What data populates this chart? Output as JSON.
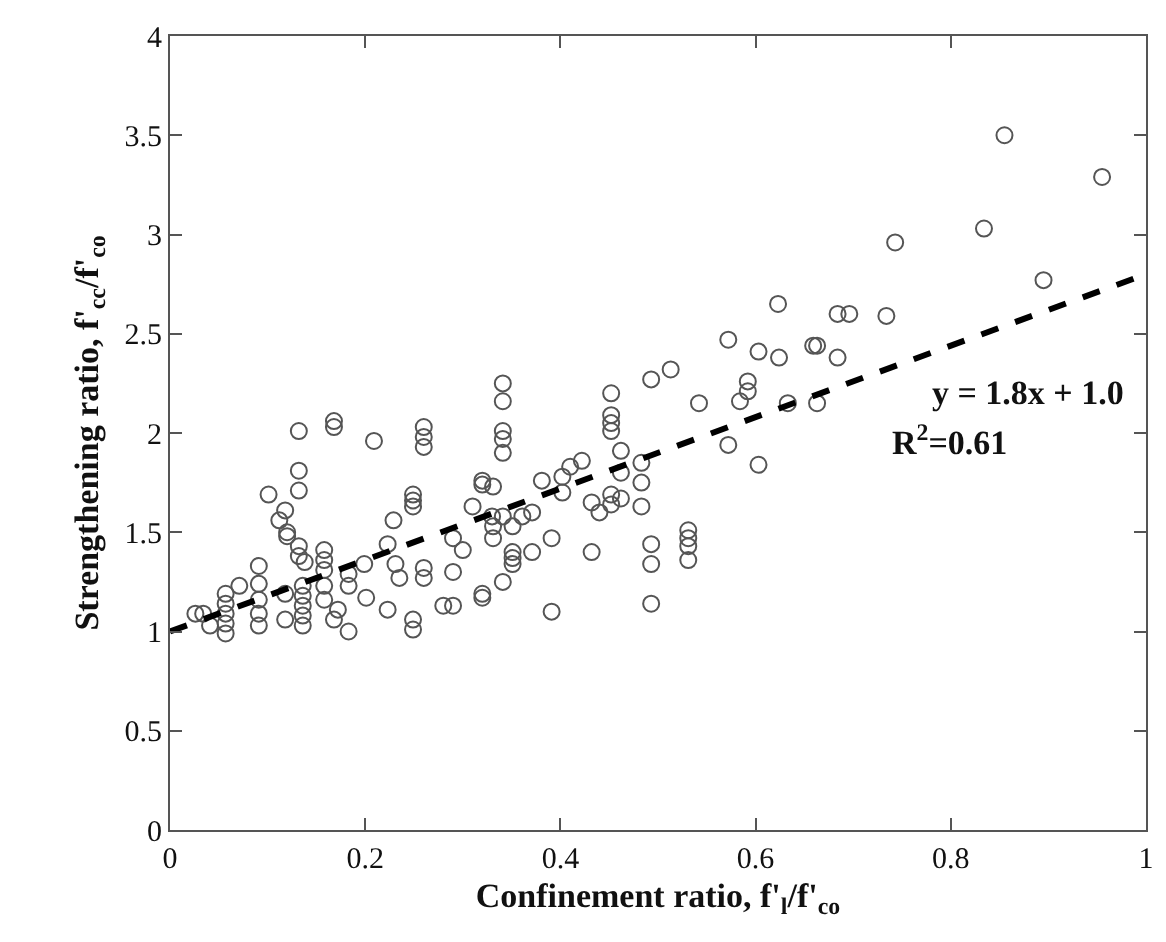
{
  "chart_data": {
    "type": "scatter",
    "xlabel": "Confinement ratio, f'$_{l}$/f'$_{co}$",
    "ylabel": "Strengthening ratio, f'$_{cc}$/f'$_{co}$",
    "xlim": [
      0,
      1
    ],
    "xticks": [
      0,
      0.2,
      0.4,
      0.6,
      0.8,
      1
    ],
    "ylim": [
      0,
      4
    ],
    "yticks": [
      0,
      0.5,
      1,
      1.5,
      2,
      2.5,
      3,
      3.5,
      4
    ],
    "annotations": [
      "y = 1.8x + 1.0",
      "R$^{2}$=0.61"
    ],
    "series": [
      {
        "color": "#555555",
        "marker": "circle",
        "x": [
          0.026,
          0.034,
          0.041,
          0.057,
          0.057,
          0.057,
          0.057,
          0.057,
          0.071,
          0.091,
          0.091,
          0.091,
          0.091,
          0.091,
          0.101,
          0.112,
          0.118,
          0.118,
          0.118,
          0.12,
          0.12,
          0.132,
          0.132,
          0.132,
          0.132,
          0.132,
          0.138,
          0.136,
          0.136,
          0.136,
          0.136,
          0.136,
          0.158,
          0.158,
          0.158,
          0.158,
          0.158,
          0.168,
          0.168,
          0.168,
          0.183,
          0.183,
          0.183,
          0.172,
          0.199,
          0.201,
          0.209,
          0.223,
          0.223,
          0.229,
          0.231,
          0.235,
          0.249,
          0.249,
          0.249,
          0.249,
          0.249,
          0.26,
          0.26,
          0.26,
          0.26,
          0.26,
          0.28,
          0.29,
          0.29,
          0.29,
          0.3,
          0.31,
          0.32,
          0.32,
          0.33,
          0.32,
          0.331,
          0.341,
          0.341,
          0.341,
          0.341,
          0.341,
          0.341,
          0.351,
          0.361,
          0.331,
          0.331,
          0.351,
          0.351,
          0.351,
          0.371,
          0.341,
          0.32,
          0.381,
          0.402,
          0.41,
          0.422,
          0.402,
          0.371,
          0.391,
          0.432,
          0.432,
          0.44,
          0.391,
          0.452,
          0.452,
          0.452,
          0.452,
          0.462,
          0.483,
          0.462,
          0.483,
          0.452,
          0.452,
          0.462,
          0.483,
          0.493,
          0.493,
          0.493,
          0.493,
          0.513,
          0.531,
          0.531,
          0.531,
          0.531,
          0.542,
          0.572,
          0.572,
          0.584,
          0.592,
          0.592,
          0.603,
          0.603,
          0.623,
          0.624,
          0.633,
          0.659,
          0.663,
          0.663,
          0.684,
          0.684,
          0.696,
          0.734,
          0.743,
          0.834,
          0.855,
          0.895,
          0.955
        ],
        "values": [
          1.09,
          1.09,
          1.03,
          1.19,
          1.14,
          1.09,
          1.04,
          0.99,
          1.23,
          1.33,
          1.24,
          1.16,
          1.09,
          1.03,
          1.69,
          1.56,
          1.61,
          1.19,
          1.06,
          1.48,
          1.5,
          2.01,
          1.81,
          1.71,
          1.43,
          1.38,
          1.35,
          1.23,
          1.18,
          1.13,
          1.08,
          1.03,
          1.41,
          1.36,
          1.31,
          1.23,
          1.16,
          2.06,
          2.03,
          1.06,
          1.29,
          1.23,
          1.0,
          1.11,
          1.34,
          1.17,
          1.96,
          1.44,
          1.11,
          1.56,
          1.34,
          1.27,
          1.69,
          1.66,
          1.63,
          1.06,
          1.01,
          2.03,
          1.98,
          1.93,
          1.32,
          1.27,
          1.13,
          1.13,
          1.47,
          1.3,
          1.41,
          1.63,
          1.74,
          1.19,
          1.58,
          1.76,
          1.73,
          2.25,
          2.16,
          2.01,
          1.97,
          1.9,
          1.58,
          1.53,
          1.58,
          1.53,
          1.47,
          1.4,
          1.37,
          1.34,
          1.4,
          1.25,
          1.17,
          1.76,
          1.7,
          1.83,
          1.86,
          1.78,
          1.6,
          1.47,
          1.65,
          1.4,
          1.6,
          1.1,
          2.2,
          2.09,
          2.05,
          2.01,
          1.91,
          1.85,
          1.8,
          1.75,
          1.69,
          1.64,
          1.67,
          1.63,
          1.44,
          1.34,
          1.14,
          2.27,
          2.32,
          1.51,
          1.47,
          1.43,
          1.36,
          2.15,
          2.47,
          1.94,
          2.16,
          2.26,
          2.21,
          2.41,
          1.84,
          2.65,
          2.38,
          2.15,
          2.44,
          2.44,
          2.15,
          2.6,
          2.38,
          2.6,
          2.59,
          2.96,
          3.03,
          3.5,
          2.77,
          3.29
        ]
      },
      {
        "type": "line",
        "color": "#000000",
        "line_style": "dashed",
        "x": [
          0,
          1
        ],
        "values": [
          1.0,
          2.8
        ]
      }
    ]
  }
}
